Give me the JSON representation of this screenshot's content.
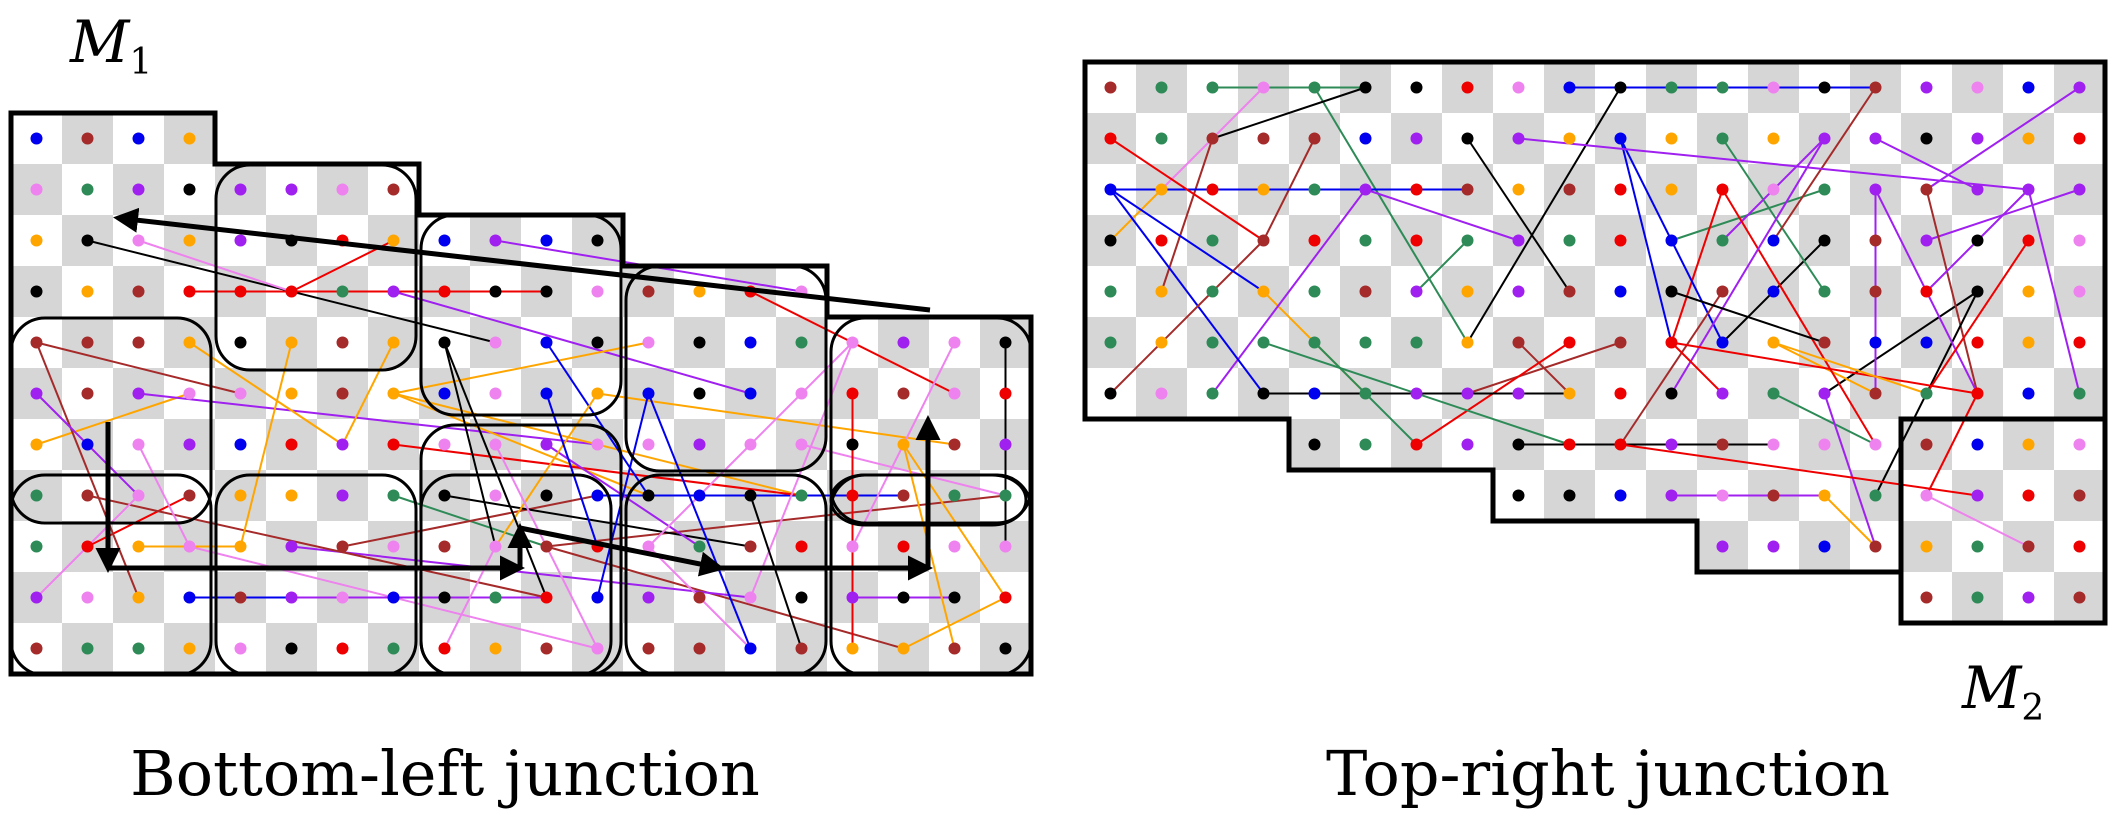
{
  "labels": {
    "m1": {
      "base": "M",
      "sub": "1"
    },
    "m2": {
      "base": "M",
      "sub": "2"
    }
  },
  "captions": {
    "left": "Bottom-left junction",
    "right": "Top-right junction"
  },
  "colors": {
    "checker": "#d6d6d6",
    "outline": "#000000",
    "dots": [
      "#0000ee",
      "#000000",
      "#ffa500",
      "#ee0000",
      "#a020f0",
      "#a52a2a",
      "#2e8b57",
      "#ee82ee"
    ]
  }
}
